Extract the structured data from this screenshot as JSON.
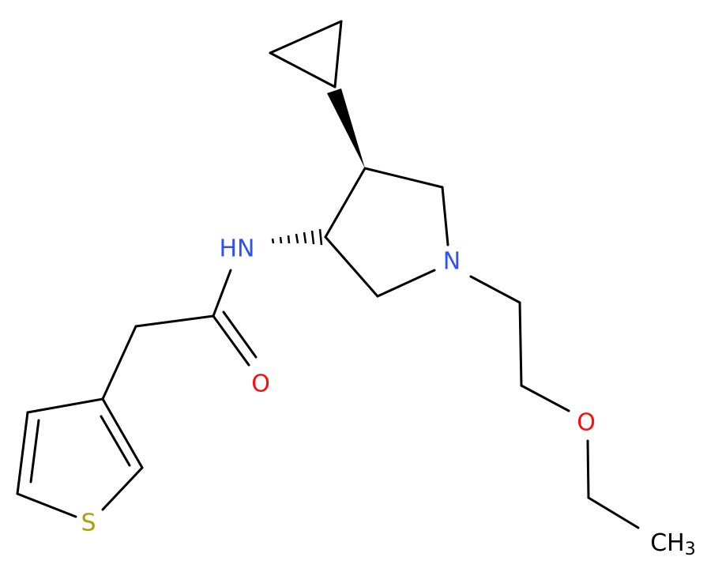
{
  "atoms": {
    "nh": "HN",
    "n_ring": "N",
    "o_carbonyl": "O",
    "o_ether": "O",
    "s": "S",
    "ch3": {
      "main": "CH",
      "sub": "3"
    }
  }
}
